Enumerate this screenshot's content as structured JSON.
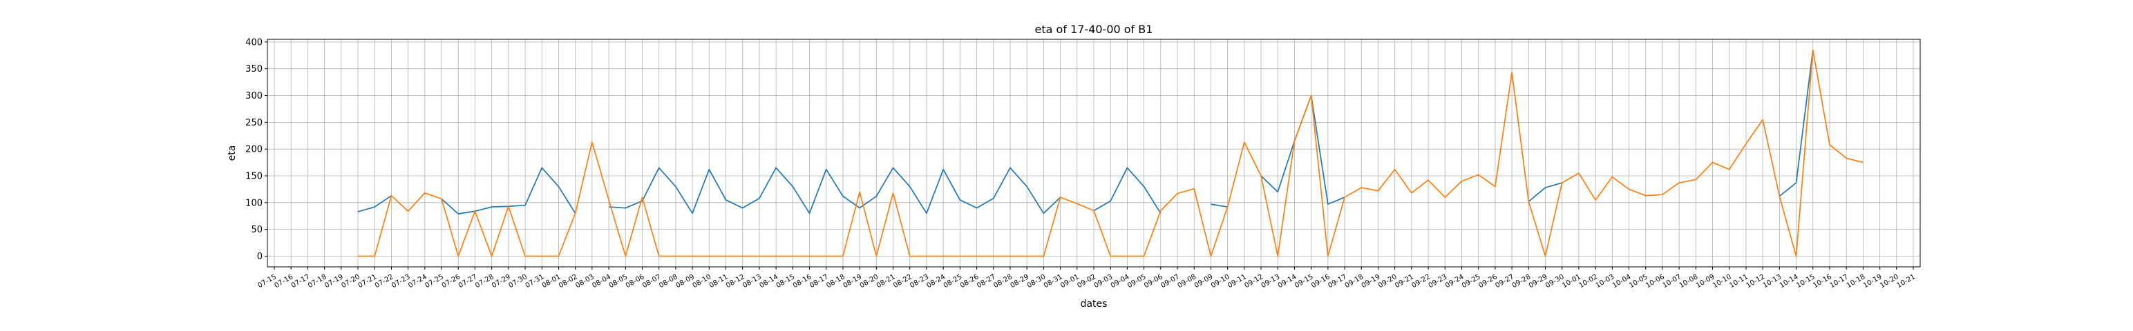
{
  "chart_data": {
    "type": "line",
    "title": "eta of 17-40-00 of B1",
    "xlabel": "dates",
    "ylabel": "eta",
    "grid": true,
    "ylim": [
      -20,
      405
    ],
    "yticks": [
      0,
      50,
      100,
      150,
      200,
      250,
      300,
      350,
      400
    ],
    "categories": [
      "07-15",
      "07-16",
      "07-17",
      "07-18",
      "07-19",
      "07-20",
      "07-21",
      "07-22",
      "07-23",
      "07-24",
      "07-25",
      "07-26",
      "07-27",
      "07-28",
      "07-29",
      "07-30",
      "07-31",
      "08-01",
      "08-02",
      "08-03",
      "08-04",
      "08-05",
      "08-06",
      "08-07",
      "08-08",
      "08-09",
      "08-10",
      "08-11",
      "08-12",
      "08-13",
      "08-14",
      "08-15",
      "08-16",
      "08-17",
      "08-18",
      "08-19",
      "08-20",
      "08-21",
      "08-22",
      "08-23",
      "08-24",
      "08-25",
      "08-26",
      "08-27",
      "08-28",
      "08-29",
      "08-30",
      "08-31",
      "09-01",
      "09-02",
      "09-03",
      "09-04",
      "09-05",
      "09-06",
      "09-07",
      "09-08",
      "09-09",
      "09-10",
      "09-11",
      "09-12",
      "09-13",
      "09-14",
      "09-15",
      "09-16",
      "09-17",
      "09-18",
      "09-19",
      "09-20",
      "09-21",
      "09-22",
      "09-23",
      "09-24",
      "09-25",
      "09-26",
      "09-27",
      "09-28",
      "09-29",
      "09-30",
      "10-01",
      "10-02",
      "10-03",
      "10-04",
      "10-05",
      "10-06",
      "10-07",
      "10-08",
      "10-09",
      "10-10",
      "10-11",
      "10-12",
      "10-13",
      "10-14",
      "10-15",
      "10-16",
      "10-17",
      "10-18",
      "10-19",
      "10-20",
      "10-21"
    ],
    "series": [
      {
        "color": "#1f77b4",
        "values": [
          null,
          null,
          null,
          null,
          null,
          83,
          92,
          113,
          null,
          null,
          107,
          79,
          84,
          92,
          93,
          95,
          165,
          130,
          80,
          null,
          92,
          90,
          103,
          165,
          130,
          80,
          162,
          105,
          90,
          108,
          165,
          130,
          80,
          162,
          112,
          90,
          112,
          165,
          130,
          80,
          162,
          105,
          90,
          108,
          165,
          130,
          80,
          110,
          null,
          85,
          103,
          165,
          130,
          80,
          null,
          null,
          97,
          92,
          null,
          150,
          120,
          215,
          300,
          97,
          110,
          null,
          null,
          null,
          null,
          null,
          null,
          null,
          null,
          null,
          null,
          102,
          128,
          137,
          null,
          null,
          null,
          null,
          null,
          null,
          null,
          null,
          null,
          null,
          null,
          null,
          112,
          137,
          385,
          null,
          null,
          null,
          null,
          null,
          null
        ]
      },
      {
        "color": "#ff7f0e",
        "values": [
          null,
          null,
          null,
          null,
          null,
          0,
          0,
          113,
          84,
          118,
          107,
          0,
          84,
          0,
          93,
          0,
          0,
          0,
          80,
          213,
          105,
          0,
          110,
          0,
          0,
          0,
          0,
          0,
          0,
          0,
          0,
          0,
          0,
          0,
          0,
          120,
          0,
          118,
          0,
          0,
          0,
          0,
          0,
          0,
          0,
          0,
          0,
          110,
          98,
          85,
          0,
          0,
          0,
          85,
          117,
          126,
          0,
          92,
          213,
          150,
          0,
          215,
          300,
          0,
          110,
          128,
          122,
          162,
          118,
          142,
          110,
          140,
          152,
          130,
          343,
          102,
          0,
          137,
          155,
          105,
          148,
          125,
          113,
          115,
          137,
          143,
          175,
          162,
          210,
          255,
          112,
          0,
          385,
          208,
          183,
          175,
          null,
          null,
          null
        ]
      }
    ]
  }
}
